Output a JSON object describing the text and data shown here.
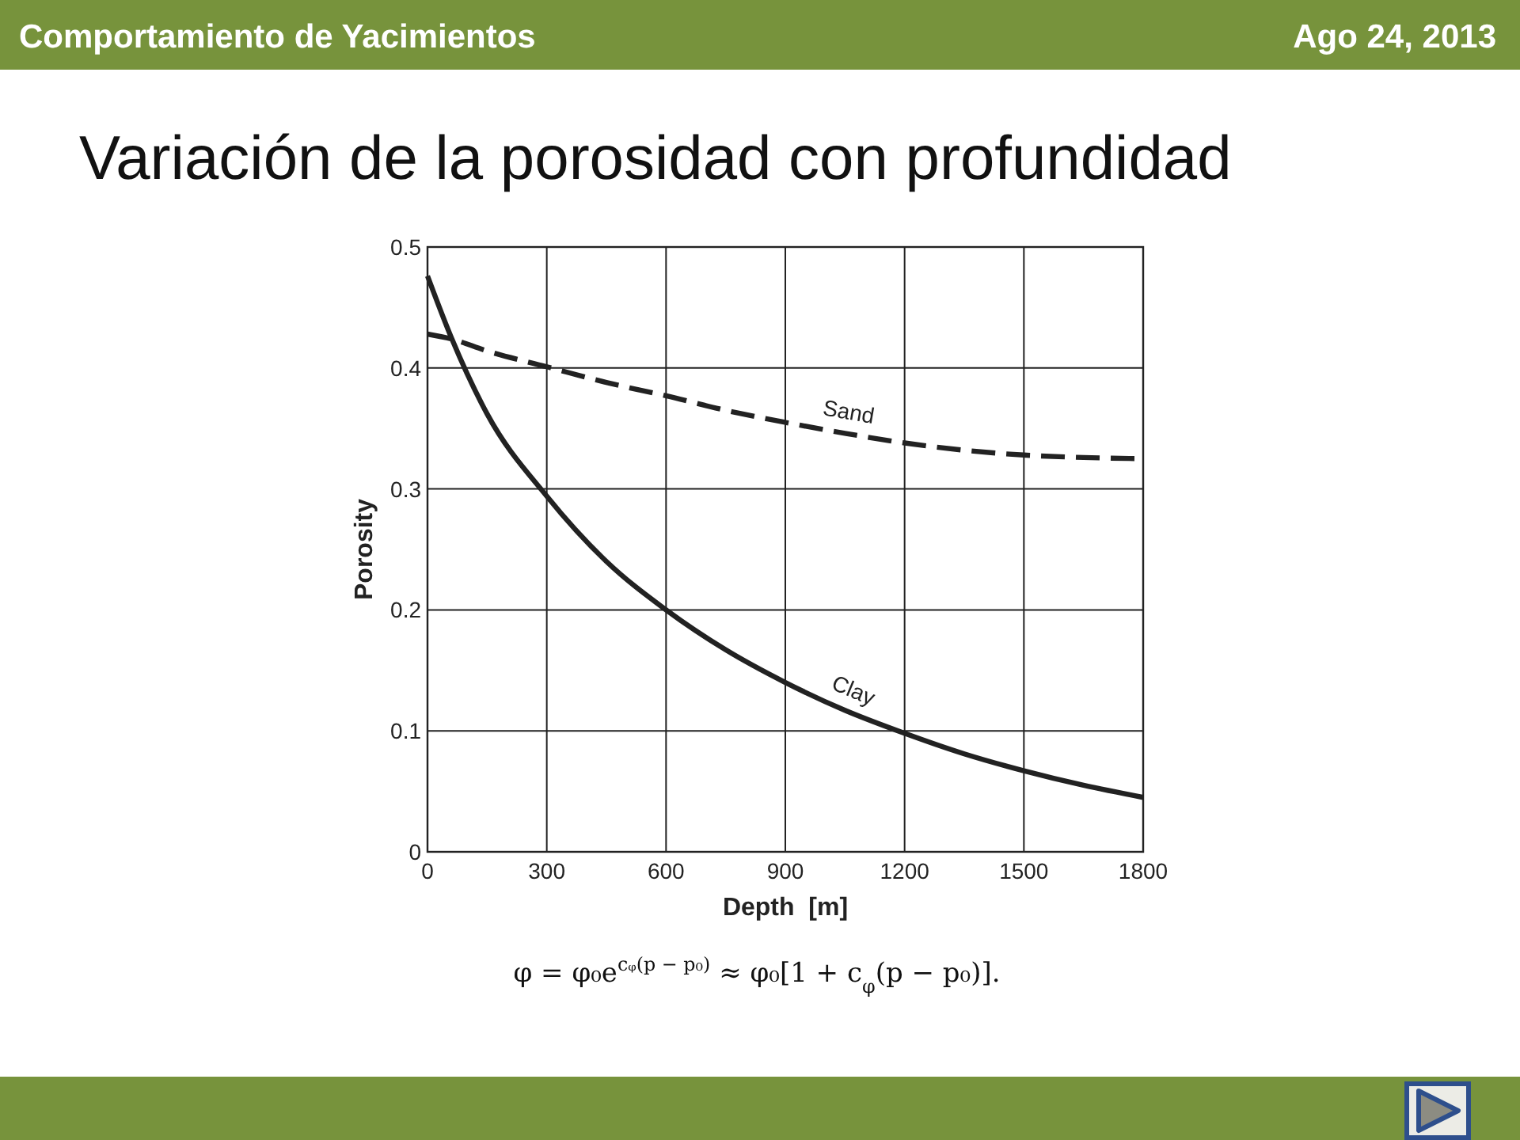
{
  "chart_data": {
    "type": "line",
    "title": "Variación de la porosidad con profundidad",
    "xlabel": "Depth  [m]",
    "ylabel": "Porosity",
    "x": [
      0,
      60,
      150,
      300,
      450,
      600,
      750,
      900,
      1050,
      1200,
      1350,
      1500,
      1650,
      1800
    ],
    "series": [
      {
        "name": "Sand",
        "color": "#222222",
        "line_style": "dashed",
        "values": [
          0.428,
          0.424,
          0.414,
          0.401,
          0.388,
          0.377,
          0.365,
          0.355,
          0.346,
          0.338,
          0.332,
          0.328,
          0.326,
          0.325
        ]
      },
      {
        "name": "Clay",
        "color": "#222222",
        "line_style": "solid",
        "values": [
          0.476,
          0.425,
          0.362,
          0.294,
          0.24,
          0.2,
          0.167,
          0.14,
          0.117,
          0.098,
          0.081,
          0.067,
          0.055,
          0.045
        ]
      }
    ],
    "xlim": [
      0,
      1800
    ],
    "xticks": [
      0,
      300,
      600,
      900,
      1200,
      1500,
      1800
    ],
    "ylim": [
      0,
      0.5
    ],
    "yticks": [
      0,
      0.1,
      0.2,
      0.3,
      0.4,
      0.5
    ],
    "grid": true,
    "annotations": [
      "Comportamiento de Yacimientos",
      "Ago 24, 2013",
      "φ = φ₀e$^{cᵩ(p − p₀)}$ ≈ φ₀[1 + c$_{φ}$(p − p₀)]."
    ]
  }
}
